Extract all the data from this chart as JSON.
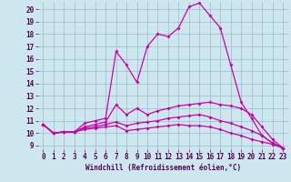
{
  "xlabel": "Windchill (Refroidissement éolien,°C)",
  "background_color": "#cce8ee",
  "grid_color": "#99bbcc",
  "line_color": "#cc00aa",
  "xlim": [
    -0.5,
    23.5
  ],
  "ylim": [
    8.7,
    20.6
  ],
  "xticks": [
    0,
    1,
    2,
    3,
    4,
    5,
    6,
    7,
    8,
    9,
    10,
    11,
    12,
    13,
    14,
    15,
    16,
    17,
    18,
    19,
    20,
    21,
    22,
    23
  ],
  "yticks": [
    9,
    10,
    11,
    12,
    13,
    14,
    15,
    16,
    17,
    18,
    19,
    20
  ],
  "lines": [
    [
      10.7,
      10.0,
      10.1,
      10.1,
      10.8,
      11.0,
      11.2,
      16.6,
      15.5,
      14.1,
      17.0,
      18.0,
      17.8,
      18.5,
      20.2,
      20.5,
      19.5,
      18.5,
      15.5,
      12.5,
      11.2,
      9.8,
      9.2,
      8.8
    ],
    [
      10.7,
      10.0,
      10.1,
      10.1,
      10.5,
      10.7,
      10.9,
      12.3,
      11.5,
      12.0,
      11.5,
      11.8,
      12.0,
      12.2,
      12.3,
      12.4,
      12.5,
      12.3,
      12.2,
      12.0,
      11.5,
      10.5,
      9.5,
      8.8
    ],
    [
      10.7,
      10.0,
      10.1,
      10.1,
      10.4,
      10.5,
      10.7,
      10.9,
      10.6,
      10.8,
      10.9,
      11.0,
      11.2,
      11.3,
      11.4,
      11.5,
      11.3,
      11.0,
      10.8,
      10.5,
      10.2,
      9.8,
      9.2,
      8.8
    ],
    [
      10.7,
      10.0,
      10.1,
      10.1,
      10.3,
      10.4,
      10.5,
      10.6,
      10.2,
      10.3,
      10.4,
      10.5,
      10.6,
      10.7,
      10.6,
      10.6,
      10.5,
      10.3,
      10.0,
      9.8,
      9.5,
      9.3,
      9.1,
      8.8
    ]
  ],
  "tick_fontsize": 5.5,
  "xlabel_fontsize": 5.5
}
